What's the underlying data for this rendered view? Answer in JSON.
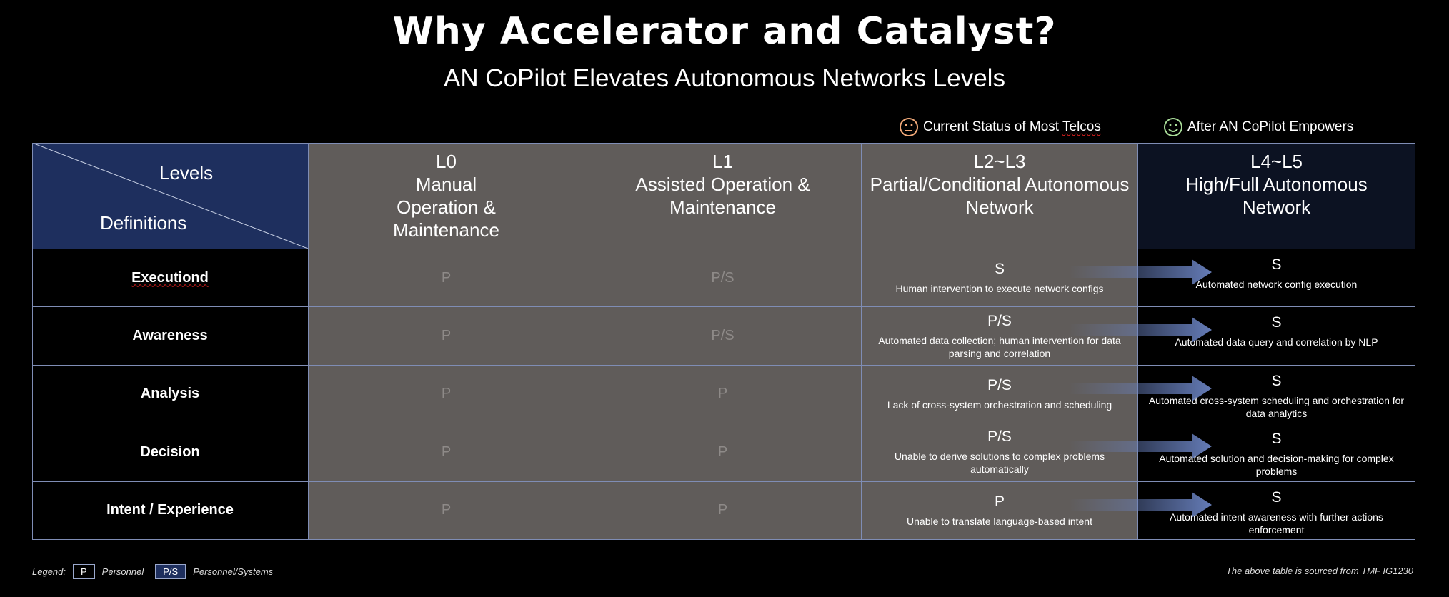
{
  "title": "Why Accelerator and Catalyst?",
  "subtitle": "AN CoPilot Elevates Autonomous Networks Levels",
  "status_legend": {
    "current": {
      "icon": "neutral-face-icon",
      "color": "#f0a878",
      "label_prefix": "Current Status of Most ",
      "label_suffix": "Telcos"
    },
    "after": {
      "icon": "smiley-face-icon",
      "color": "#a8dc98",
      "label": "After AN CoPilot Empowers"
    }
  },
  "corner": {
    "levels": "Levels",
    "definitions": "Definitions"
  },
  "columns": [
    {
      "level": "L0",
      "name": "Manual Operation & Maintenance",
      "lines": [
        "Manual",
        "Operation &",
        "Maintenance"
      ]
    },
    {
      "level": "L1",
      "name": "Assisted Operation & Maintenance",
      "lines": [
        "Assisted Operation &",
        "Maintenance"
      ]
    },
    {
      "level": "L2~L3",
      "name": "Partial/Conditional Autonomous Network",
      "lines": [
        "Partial/Conditional Autonomous",
        "Network"
      ]
    },
    {
      "level": "L4~L5",
      "name": "High/Full Autonomous Network",
      "lines": [
        "High/Full Autonomous",
        "Network"
      ]
    }
  ],
  "rows": [
    {
      "label": "Executiond",
      "l0": "P",
      "l1": "P/S",
      "l23": "S",
      "l23_desc": "Human intervention to execute network configs",
      "l45": "S",
      "l45_desc": "Automated network config execution"
    },
    {
      "label": "Awareness",
      "l0": "P",
      "l1": "P/S",
      "l23": "P/S",
      "l23_desc": "Automated data collection; human intervention for data parsing and correlation",
      "l45": "S",
      "l45_desc": "Automated data query and correlation by NLP"
    },
    {
      "label": "Analysis",
      "l0": "P",
      "l1": "P",
      "l23": "P/S",
      "l23_desc": "Lack of cross-system orchestration and scheduling",
      "l45": "S",
      "l45_desc": "Automated cross-system scheduling and orchestration for data analytics"
    },
    {
      "label": "Decision",
      "l0": "P",
      "l1": "P",
      "l23": "P/S",
      "l23_desc": "Unable to derive solutions to complex problems automatically",
      "l45": "S",
      "l45_desc": "Automated solution and decision-making for complex problems"
    },
    {
      "label": "Intent / Experience",
      "l0": "P",
      "l1": "P",
      "l23": "P",
      "l23_desc": "Unable to translate language-based intent",
      "l45": "S",
      "l45_desc": "Automated intent awareness with further actions enforcement"
    }
  ],
  "legend": {
    "label": "Legend:",
    "p_box": "P",
    "p_text": "Personnel",
    "ps_box": "P/S",
    "ps_text": "Personnel/Systems"
  },
  "source": "The above table is sourced from TMF IG1230",
  "colors": {
    "corner_bg": "#1e2f5e",
    "gray_cell": "#605c5a",
    "l45_header": "#0c1222",
    "border": "#7f8db5",
    "arrow": "#6a82c0"
  }
}
